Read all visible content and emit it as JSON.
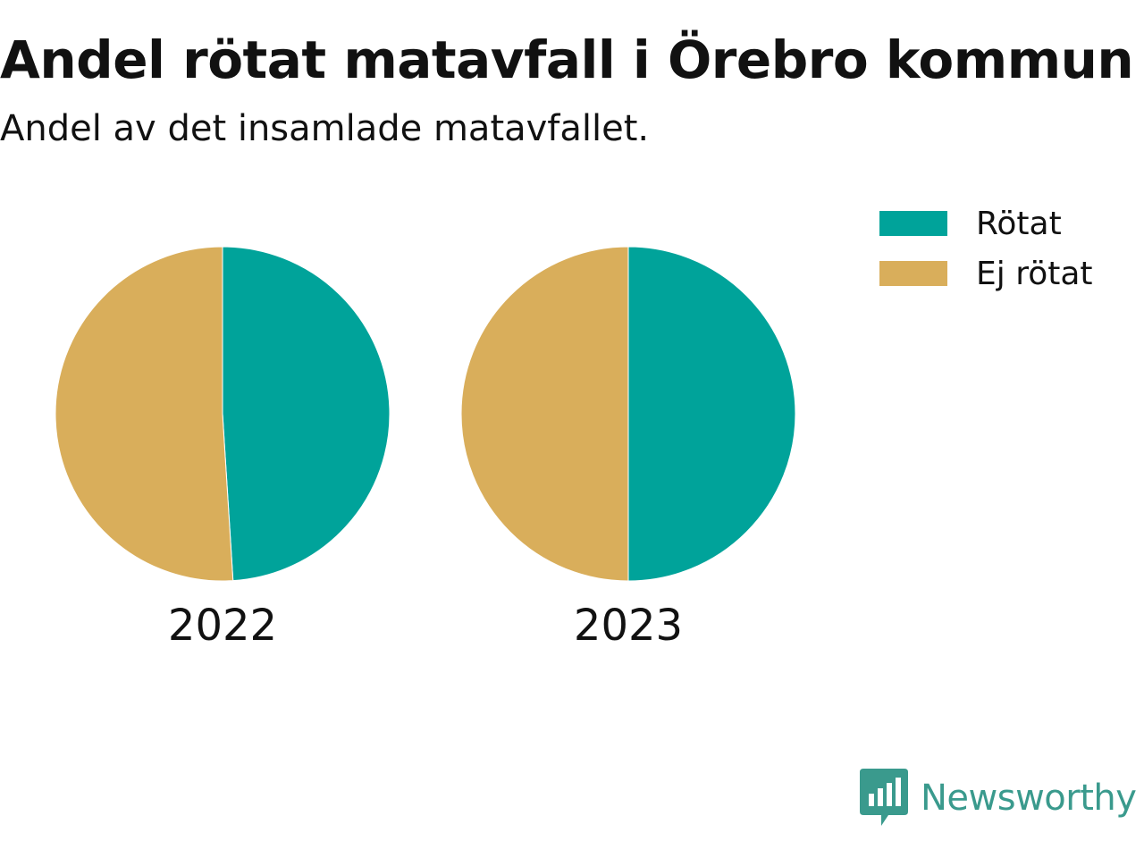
{
  "chart_data": {
    "type": "pie",
    "title": "Andel rötat matavfall i Örebro kommun",
    "subtitle": "Andel av det insamlade matavfallet.",
    "legend_position": "top-right",
    "legend": [
      {
        "name": "Rötat",
        "color": "#00a39a"
      },
      {
        "name": "Ej rötat",
        "color": "#d9ae5b"
      }
    ],
    "pies": [
      {
        "label": "2022",
        "slices": [
          {
            "name": "Rötat",
            "value": 49,
            "color": "#00a39a"
          },
          {
            "name": "Ej rötat",
            "value": 51,
            "color": "#d9ae5b"
          }
        ]
      },
      {
        "label": "2023",
        "slices": [
          {
            "name": "Rötat",
            "value": 50,
            "color": "#00a39a"
          },
          {
            "name": "Ej rötat",
            "value": 50,
            "color": "#d9ae5b"
          }
        ]
      }
    ]
  },
  "brand": {
    "name": "Newsworthy",
    "icon": "newsworthy-logo-icon",
    "color": "#3a9a8d"
  }
}
